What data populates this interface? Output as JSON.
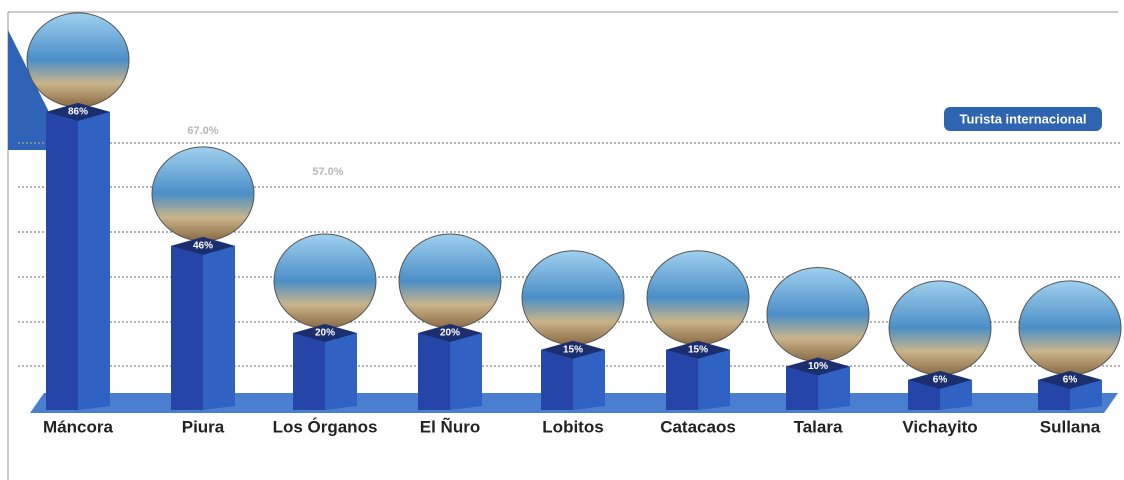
{
  "chart_data": {
    "type": "bar",
    "categories": [
      "Máncora",
      "Piura",
      "Los Órganos",
      "El Ñuro",
      "Lobitos",
      "Catacaos",
      "Talara",
      "Vichayito",
      "Sullana"
    ],
    "series": [
      {
        "name": "Turista internacional",
        "color": "#2546a8",
        "values": [
          86,
          46,
          20,
          20,
          15,
          15,
          10,
          6,
          6
        ],
        "value_labels": [
          "86%",
          "46%",
          "20%",
          "20%",
          "15%",
          "15%",
          "10%",
          "6%",
          "6%"
        ]
      }
    ],
    "annotations": [
      "67.0%",
      "57.0%"
    ],
    "ylim": [
      0,
      100
    ],
    "legend": "top-right"
  }
}
